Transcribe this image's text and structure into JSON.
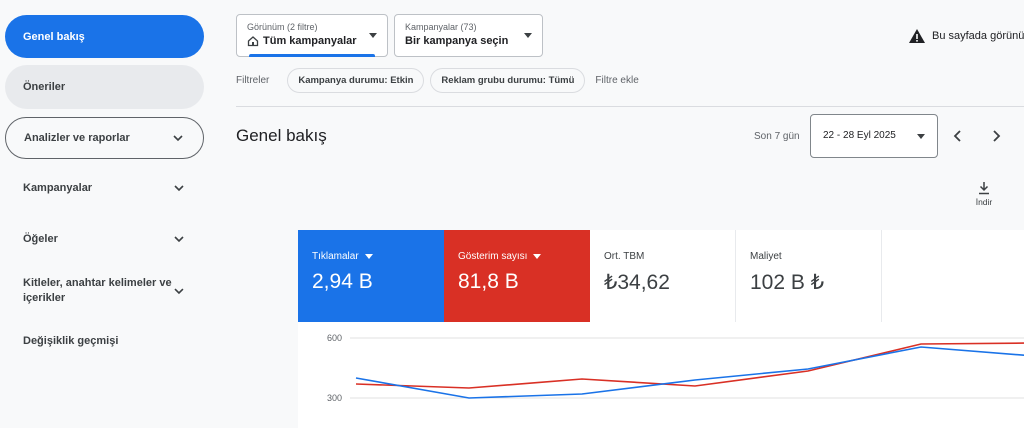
{
  "sidebar": {
    "items": [
      {
        "label": "Genel bakış"
      },
      {
        "label": "Öneriler"
      },
      {
        "label": "Analizler ve raporlar"
      },
      {
        "label": "Kampanyalar"
      },
      {
        "label": "Öğeler"
      },
      {
        "label": "Kitleler, anahtar kelimeler ve içerikler"
      },
      {
        "label": "Değişiklik geçmişi"
      }
    ]
  },
  "header": {
    "view_selector": {
      "small": "Görünüm (2 filtre)",
      "value": "Tüm kampanyalar"
    },
    "campaign_selector": {
      "small": "Kampanyalar (73)",
      "value": "Bir kampanya seçin"
    },
    "warning": "Bu sayfada görünüm"
  },
  "filters": {
    "label": "Filtreler",
    "chips": [
      "Kampanya durumu: Etkin",
      "Reklam grubu durumu: Tümü"
    ],
    "add": "Filtre ekle"
  },
  "overview": {
    "title": "Genel bakış",
    "period_label": "Son 7 gün",
    "date_range": "22 - 28 Eyl 2025",
    "download_label": "İndir"
  },
  "metrics": [
    {
      "label": "Tıklamalar",
      "value": "2,94 B",
      "color": "#1a73e8"
    },
    {
      "label": "Gösterim sayısı",
      "value": "81,8 B",
      "color": "#d93025"
    },
    {
      "label": "Ort. TBM",
      "value": "₺34,62"
    },
    {
      "label": "Maliyet",
      "value": "102 B ₺"
    }
  ],
  "chart_data": {
    "type": "line",
    "y_ticks": [
      "600",
      "300"
    ],
    "ylim": [
      250,
      620
    ],
    "x_points": 7,
    "series": [
      {
        "color": "#1a73e8",
        "values": [
          400,
          300,
          320,
          390,
          445,
          555,
          510
        ]
      },
      {
        "color": "#d93025",
        "values": [
          370,
          350,
          395,
          360,
          435,
          570,
          575
        ]
      }
    ]
  }
}
